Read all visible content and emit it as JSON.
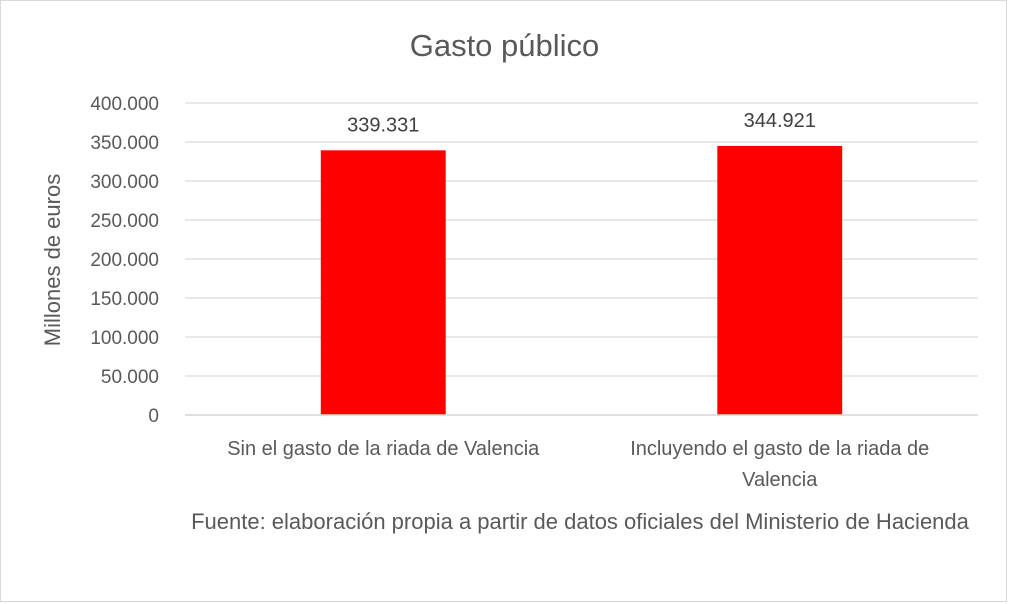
{
  "chart_data": {
    "type": "bar",
    "title": "Gasto público",
    "xlabel": "",
    "ylabel": "Millones de euros",
    "categories": [
      "Sin el gasto de la riada de Valencia",
      "Incluyendo el gasto de la riada de Valencia"
    ],
    "category_lines": [
      [
        "Sin el gasto de la riada de Valencia"
      ],
      [
        "Incluyendo el gasto de la riada de",
        "Valencia"
      ]
    ],
    "values": [
      339331,
      344921
    ],
    "data_labels": [
      "339.331",
      "344.921"
    ],
    "ylim": [
      0,
      400000
    ],
    "yticks": [
      0,
      50000,
      100000,
      150000,
      200000,
      250000,
      300000,
      350000,
      400000
    ],
    "ytick_labels": [
      "0",
      "50.000",
      "100.000",
      "150.000",
      "200.000",
      "250.000",
      "300.000",
      "350.000",
      "400.000"
    ],
    "grid": true,
    "legend": "none",
    "bar_color": "#ff0000",
    "grid_color": "#d9d9d9"
  },
  "source_note": "Fuente: elaboración propia a partir de datos oficiales del Ministerio de Hacienda"
}
